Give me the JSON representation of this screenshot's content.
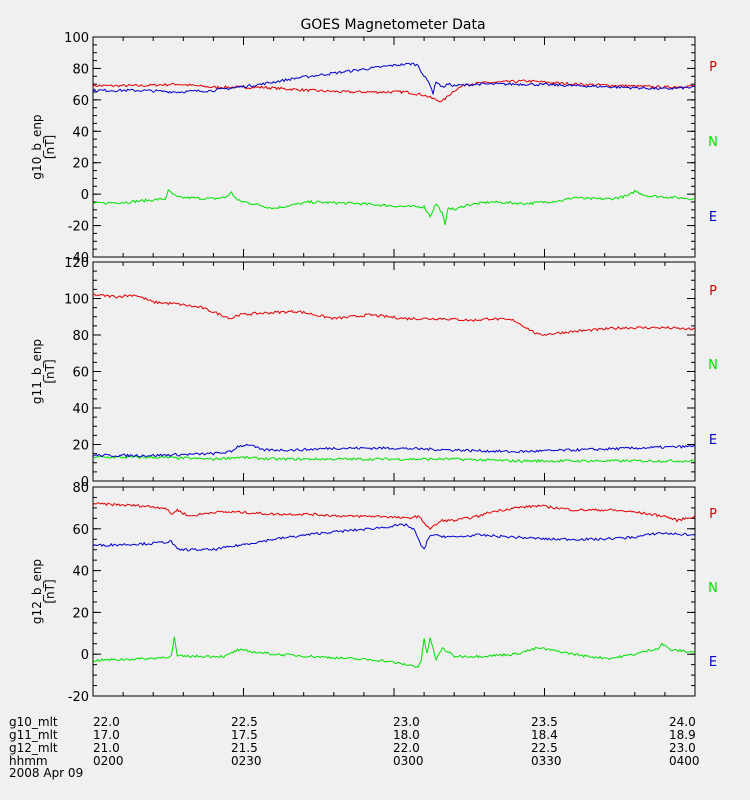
{
  "chart_data": {
    "type": "line",
    "title": "GOES Magnetometer Data",
    "panels": [
      {
        "ylabel": "g10_b_enp",
        "yunit": "[nT]",
        "ylim": [
          -40,
          100
        ],
        "yticks": [
          -40,
          -20,
          0,
          20,
          40,
          60,
          80,
          100
        ],
        "legend": [
          "P",
          "N",
          "E"
        ],
        "series": [
          {
            "name": "P",
            "color": "#e00000",
            "x": [
              0,
              8,
              14,
              20,
              28,
              36,
              42,
              48,
              52,
              55,
              57,
              58,
              60,
              62,
              66,
              72,
              80,
              88,
              95,
              100
            ],
            "values": [
              69,
              69,
              70,
              68,
              68,
              66,
              65,
              65,
              65,
              63,
              60,
              59,
              66,
              70,
              71,
              72,
              70,
              69,
              68,
              69
            ]
          },
          {
            "name": "N",
            "color": "#00e000",
            "x": [
              0,
              6,
              12,
              12.5,
              14,
              20,
              22,
              23,
              24,
              30,
              36,
              44,
              52,
              55,
              56,
              57,
              58,
              58.5,
              59,
              60,
              62,
              66,
              72,
              78,
              80,
              82,
              86,
              89,
              90,
              92,
              96,
              100
            ],
            "values": [
              -6,
              -5,
              -3,
              2,
              -2,
              -3,
              -2,
              1,
              -4,
              -9,
              -5,
              -6,
              -8,
              -8,
              -14,
              -6,
              -12,
              -20,
              -8,
              -10,
              -7,
              -5,
              -6,
              -4,
              -2,
              -3,
              -3,
              -1,
              2,
              -1,
              -2,
              -3
            ]
          },
          {
            "name": "E",
            "color": "#0000cc",
            "x": [
              0,
              8,
              14,
              20,
              28,
              34,
              40,
              46,
              50,
              53,
              54,
              55,
              56,
              56.5,
              57,
              58,
              59,
              60,
              64,
              72,
              80,
              88,
              95,
              100
            ],
            "values": [
              66,
              66,
              65,
              66,
              70,
              74,
              77,
              80,
              82,
              83,
              82,
              75,
              70,
              64,
              72,
              68,
              70,
              69,
              70,
              70,
              69,
              68,
              67,
              68
            ]
          }
        ]
      },
      {
        "ylabel": "g11_b_enp",
        "yunit": "[nT]",
        "ylim": [
          0,
          120
        ],
        "yticks": [
          0,
          20,
          40,
          60,
          80,
          100,
          120
        ],
        "legend": [
          "P",
          "N",
          "E"
        ],
        "series": [
          {
            "name": "P",
            "color": "#e00000",
            "x": [
              0,
              4,
              7,
              10,
              14,
              18,
              23,
              24,
              28,
              34,
              40,
              46,
              52,
              58,
              63,
              66,
              70,
              72,
              74,
              80,
              88,
              95,
              100
            ],
            "values": [
              102,
              101,
              102,
              98,
              97,
              95,
              89,
              91,
              92,
              93,
              89,
              91,
              89,
              89,
              88,
              89,
              88,
              84,
              80,
              82,
              84,
              84,
              83
            ]
          },
          {
            "name": "N",
            "color": "#00e000",
            "x": [
              0,
              10,
              20,
              24,
              30,
              40,
              50,
              60,
              70,
              80,
              90,
              100
            ],
            "values": [
              13,
              13,
              12,
              13,
              12,
              12,
              12,
              12,
              11,
              11,
              11,
              11
            ]
          },
          {
            "name": "E",
            "color": "#0000cc",
            "x": [
              0,
              10,
              20,
              23,
              24,
              26,
              28,
              34,
              40,
              50,
              60,
              70,
              80,
              90,
              100
            ],
            "values": [
              14,
              14,
              15,
              16,
              19,
              20,
              17,
              17,
              18,
              18,
              17,
              16,
              17,
              18,
              19
            ]
          }
        ]
      },
      {
        "ylabel": "g12_b_enp",
        "yunit": "[nT]",
        "ylim": [
          -20,
          80
        ],
        "yticks": [
          -20,
          0,
          20,
          40,
          60,
          80
        ],
        "legend": [
          "P",
          "N",
          "E"
        ],
        "series": [
          {
            "name": "P",
            "color": "#e00000",
            "x": [
              0,
              8,
              12,
              13,
              14,
              16,
              20,
              24,
              30,
              36,
              42,
              48,
              52,
              54,
              55,
              56,
              57,
              58,
              60,
              64,
              66,
              70,
              74,
              80,
              86,
              90,
              95,
              97,
              100
            ],
            "values": [
              72,
              71,
              70,
              67,
              69,
              66,
              68,
              68,
              67,
              67,
              66,
              66,
              65,
              66,
              63,
              60,
              62,
              64,
              64,
              66,
              68,
              70,
              71,
              69,
              69,
              68,
              66,
              64,
              66
            ]
          },
          {
            "name": "N",
            "color": "#00e000",
            "x": [
              0,
              10,
              13,
              13.5,
              14,
              18,
              22,
              24,
              30,
              36,
              42,
              48,
              52,
              54,
              54.5,
              55,
              55.5,
              56,
              57,
              58,
              60,
              64,
              70,
              74,
              78,
              82,
              86,
              90,
              94,
              94.5,
              96,
              100
            ],
            "values": [
              -3,
              -2,
              -1,
              8,
              -1,
              -1,
              -1,
              2,
              0,
              -1,
              -2,
              -3,
              -5,
              -6,
              -3,
              7,
              0,
              8,
              -3,
              3,
              -1,
              -1,
              0,
              3,
              1,
              -1,
              -2,
              0,
              3,
              5,
              2,
              1
            ]
          },
          {
            "name": "E",
            "color": "#0000cc",
            "x": [
              0,
              10,
              13,
              14,
              20,
              22,
              24,
              30,
              38,
              46,
              52,
              53.5,
              54,
              54.5,
              55,
              55.5,
              56,
              60,
              64,
              70,
              76,
              80,
              84,
              90,
              94,
              100
            ],
            "values": [
              52,
              53,
              54,
              50,
              50,
              51,
              52,
              55,
              58,
              60,
              62,
              59,
              55,
              52,
              50,
              54,
              57,
              56,
              57,
              56,
              55,
              55,
              55,
              56,
              58,
              57
            ]
          }
        ]
      }
    ],
    "xticks": {
      "g10_mlt": [
        "22.0",
        "22.5",
        "23.0",
        "23.5",
        "24.0"
      ],
      "g11_mlt": [
        "17.0",
        "17.5",
        "18.0",
        "18.4",
        "18.9"
      ],
      "g12_mlt": [
        "21.0",
        "21.5",
        "22.0",
        "22.5",
        "23.0"
      ],
      "hhmm": [
        "0200",
        "0230",
        "0300",
        "0330",
        "0400"
      ]
    },
    "date": "2008 Apr 09"
  }
}
